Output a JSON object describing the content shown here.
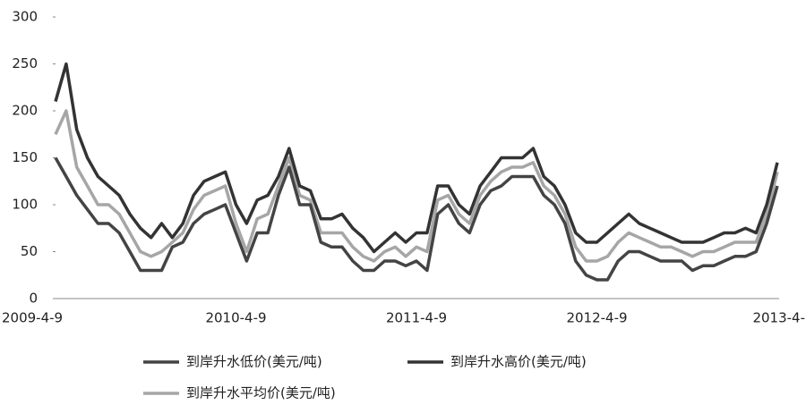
{
  "chart_data": {
    "type": "line",
    "categories": [
      "2009-4-9",
      null,
      null,
      null,
      null,
      null,
      null,
      null,
      null,
      null,
      null,
      null,
      null,
      null,
      null,
      null,
      null,
      "2010-4-9",
      null,
      null,
      null,
      null,
      null,
      null,
      null,
      null,
      null,
      null,
      null,
      null,
      null,
      null,
      null,
      null,
      "2011-4-9",
      null,
      null,
      null,
      null,
      null,
      null,
      null,
      null,
      null,
      null,
      null,
      null,
      null,
      null,
      null,
      null,
      "2012-4-9",
      null,
      null,
      null,
      null,
      null,
      null,
      null,
      null,
      null,
      null,
      null,
      null,
      null,
      null,
      null,
      null,
      "2013-4-"
    ],
    "series": [
      {
        "name": "到岸升水低价(美元/吨)",
        "color": "#444444",
        "values": [
          150,
          130,
          110,
          95,
          80,
          80,
          70,
          50,
          30,
          30,
          30,
          55,
          60,
          80,
          90,
          95,
          100,
          70,
          40,
          70,
          70,
          110,
          140,
          100,
          100,
          60,
          55,
          55,
          40,
          30,
          30,
          40,
          40,
          35,
          40,
          30,
          90,
          100,
          80,
          70,
          100,
          115,
          120,
          130,
          130,
          130,
          110,
          100,
          80,
          40,
          25,
          20,
          20,
          40,
          50,
          50,
          45,
          40,
          40,
          40,
          30,
          35,
          35,
          40,
          45,
          45,
          50,
          80,
          120
        ]
      },
      {
        "name": "到岸升水高价(美元/吨)",
        "color": "#333333",
        "values": [
          210,
          250,
          180,
          150,
          130,
          120,
          110,
          90,
          75,
          65,
          80,
          65,
          80,
          110,
          125,
          130,
          135,
          100,
          80,
          105,
          110,
          130,
          160,
          120,
          115,
          85,
          85,
          90,
          75,
          65,
          50,
          60,
          70,
          60,
          70,
          70,
          120,
          120,
          100,
          90,
          120,
          135,
          150,
          150,
          150,
          160,
          130,
          120,
          100,
          70,
          60,
          60,
          70,
          80,
          90,
          80,
          75,
          70,
          65,
          60,
          60,
          60,
          65,
          70,
          70,
          75,
          70,
          100,
          145
        ]
      },
      {
        "name": "到岸升水平均价(美元/吨)",
        "color": "#a6a6a6",
        "values": [
          175,
          200,
          140,
          120,
          100,
          100,
          90,
          70,
          50,
          45,
          50,
          60,
          70,
          95,
          110,
          115,
          120,
          80,
          50,
          85,
          90,
          120,
          150,
          110,
          105,
          70,
          70,
          70,
          55,
          45,
          40,
          50,
          55,
          45,
          55,
          50,
          105,
          110,
          90,
          80,
          110,
          125,
          135,
          140,
          140,
          145,
          120,
          110,
          90,
          55,
          40,
          40,
          45,
          60,
          70,
          65,
          60,
          55,
          55,
          50,
          45,
          50,
          50,
          55,
          60,
          60,
          60,
          90,
          135
        ]
      }
    ],
    "ylim": [
      0,
      300
    ],
    "yticks": [
      0,
      50,
      100,
      150,
      200,
      250,
      300
    ],
    "grid": false
  }
}
